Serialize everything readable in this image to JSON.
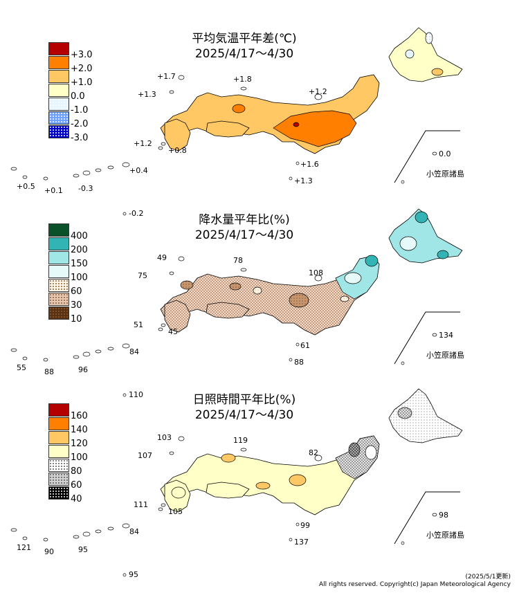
{
  "footer": {
    "updated": "(2025/5/1更新)",
    "copyright": "All rights reserved. Copyright(c) Japan Meteorological Agency"
  },
  "inset_label": "小笠原諸島",
  "panels": [
    {
      "title": "平均気温平年差(℃)",
      "period": "2025/4/17～4/30",
      "legend": [
        {
          "label": "+3.0",
          "color": "#b40000"
        },
        {
          "label": "+2.0",
          "color": "#ff8000"
        },
        {
          "label": "+1.0",
          "color": "#ffc864"
        },
        {
          "label": "0.0",
          "color": "#ffffc8"
        },
        {
          "label": "-1.0",
          "color": "#e6f5ff"
        },
        {
          "label": "-2.0",
          "color": "#6ea0ff"
        },
        {
          "label": "-3.0",
          "color": "#0000c8"
        }
      ],
      "values": [
        {
          "name": "val-yonaguni",
          "text": "+0.5"
        },
        {
          "name": "val-ishigaki",
          "text": "+0.1"
        },
        {
          "name": "val-okinawa",
          "text": "-0.3"
        },
        {
          "name": "val-amami",
          "text": "+0.4"
        },
        {
          "name": "val-daito",
          "text": "-0.2"
        },
        {
          "name": "val-tsushima",
          "text": "+1.7"
        },
        {
          "name": "val-goto",
          "text": "+1.3"
        },
        {
          "name": "val-oki",
          "text": "+1.8"
        },
        {
          "name": "val-sado",
          "text": "+1.2"
        },
        {
          "name": "val-tanegashima",
          "text": "+1.2"
        },
        {
          "name": "val-yakushima",
          "text": "+0.8"
        },
        {
          "name": "val-oshima",
          "text": "+1.6"
        },
        {
          "name": "val-hachijo",
          "text": "+1.3"
        },
        {
          "name": "val-ogasawara",
          "text": "0.0"
        }
      ]
    },
    {
      "title": "降水量平年比(%)",
      "period": "2025/4/17～4/30",
      "legend": [
        {
          "label": "400",
          "color": "#0a5028"
        },
        {
          "label": "200",
          "color": "#32b4b4"
        },
        {
          "label": "150",
          "color": "#a0e6e6"
        },
        {
          "label": "100",
          "color": "#e6fafa"
        },
        {
          "label": "60",
          "color": "#fff5e6"
        },
        {
          "label": "30",
          "color": "#e6c8b4"
        },
        {
          "label": "10",
          "color": "#5a3214"
        }
      ],
      "values": [
        {
          "name": "val-yonaguni",
          "text": "55"
        },
        {
          "name": "val-ishigaki",
          "text": "88"
        },
        {
          "name": "val-okinawa",
          "text": "96"
        },
        {
          "name": "val-amami",
          "text": "84"
        },
        {
          "name": "val-daito",
          "text": "110"
        },
        {
          "name": "val-tsushima",
          "text": "49"
        },
        {
          "name": "val-goto",
          "text": "75"
        },
        {
          "name": "val-oki",
          "text": "78"
        },
        {
          "name": "val-sado",
          "text": "108"
        },
        {
          "name": "val-tanegashima",
          "text": "51"
        },
        {
          "name": "val-yakushima",
          "text": "45"
        },
        {
          "name": "val-oshima",
          "text": "61"
        },
        {
          "name": "val-hachijo",
          "text": "88"
        },
        {
          "name": "val-ogasawara",
          "text": "134"
        }
      ]
    },
    {
      "title": "日照時間平年比(%)",
      "period": "2025/4/17～4/30",
      "legend": [
        {
          "label": "160",
          "color": "#b40000"
        },
        {
          "label": "140",
          "color": "#ff8000"
        },
        {
          "label": "120",
          "color": "#ffc864"
        },
        {
          "label": "100",
          "color": "#ffffc8"
        },
        {
          "label": "80",
          "color": "#ffffff"
        },
        {
          "label": "60",
          "color": "#d2d2d2"
        },
        {
          "label": "40",
          "color": "#000000"
        }
      ],
      "values": [
        {
          "name": "val-yonaguni",
          "text": "121"
        },
        {
          "name": "val-ishigaki",
          "text": "90"
        },
        {
          "name": "val-okinawa",
          "text": "95"
        },
        {
          "name": "val-amami",
          "text": "84"
        },
        {
          "name": "val-daito",
          "text": "95"
        },
        {
          "name": "val-tsushima",
          "text": "103"
        },
        {
          "name": "val-goto",
          "text": "107"
        },
        {
          "name": "val-oki",
          "text": "119"
        },
        {
          "name": "val-sado",
          "text": "82"
        },
        {
          "name": "val-tanegashima",
          "text": "111"
        },
        {
          "name": "val-yakushima",
          "text": "105"
        },
        {
          "name": "val-oshima",
          "text": "99"
        },
        {
          "name": "val-hachijo",
          "text": "137"
        },
        {
          "name": "val-ogasawara",
          "text": "98"
        }
      ]
    }
  ]
}
